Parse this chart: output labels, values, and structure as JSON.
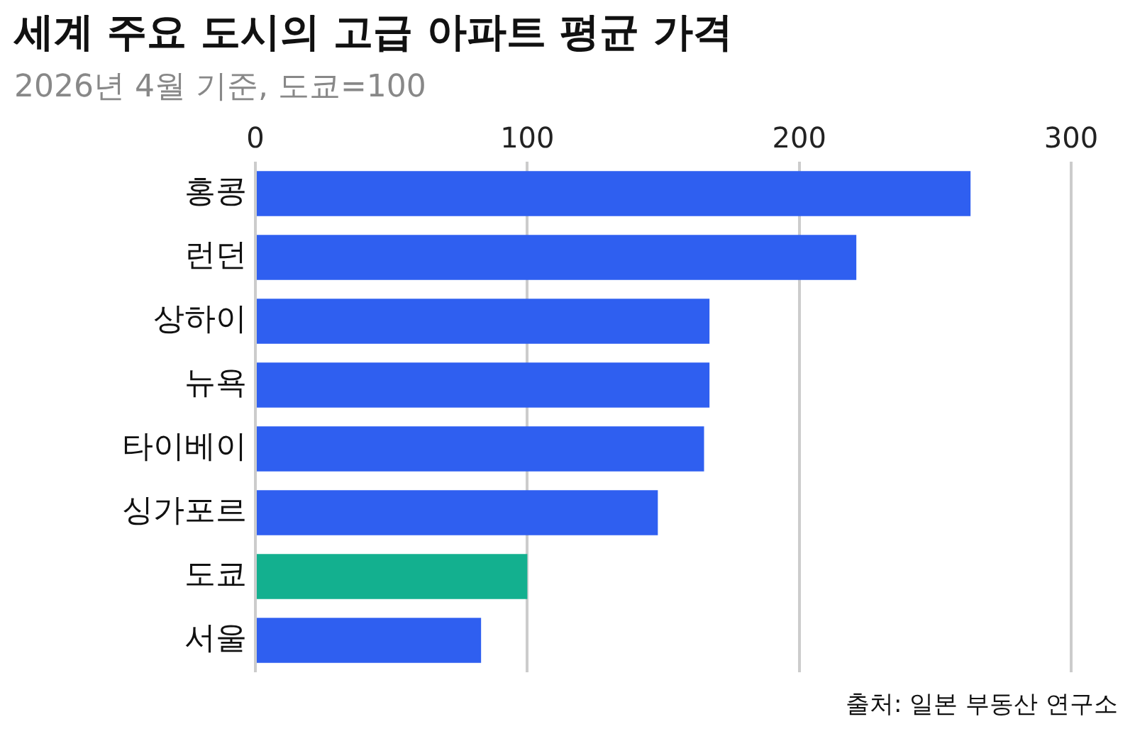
{
  "chart_data": {
    "type": "bar",
    "orientation": "horizontal",
    "title": "세계 주요 도시의 고급 아파트 평균 가격",
    "subtitle": "2026년 4월 기준, 도쿄=100",
    "categories": [
      "홍콩",
      "런던",
      "상하이",
      "뉴욕",
      "타이베이",
      "싱가포르",
      "도쿄",
      "서울"
    ],
    "values": [
      263,
      221,
      167,
      167,
      165,
      148,
      100,
      83
    ],
    "colors": [
      "#2f5ff0",
      "#2f5ff0",
      "#2f5ff0",
      "#2f5ff0",
      "#2f5ff0",
      "#2f5ff0",
      "#13b08f",
      "#2f5ff0"
    ],
    "xlim": [
      0,
      300
    ],
    "xticks": [
      0,
      100,
      200,
      300
    ],
    "grid": "x",
    "annotations": [
      "출처: 일본 부동산 연구소"
    ]
  }
}
